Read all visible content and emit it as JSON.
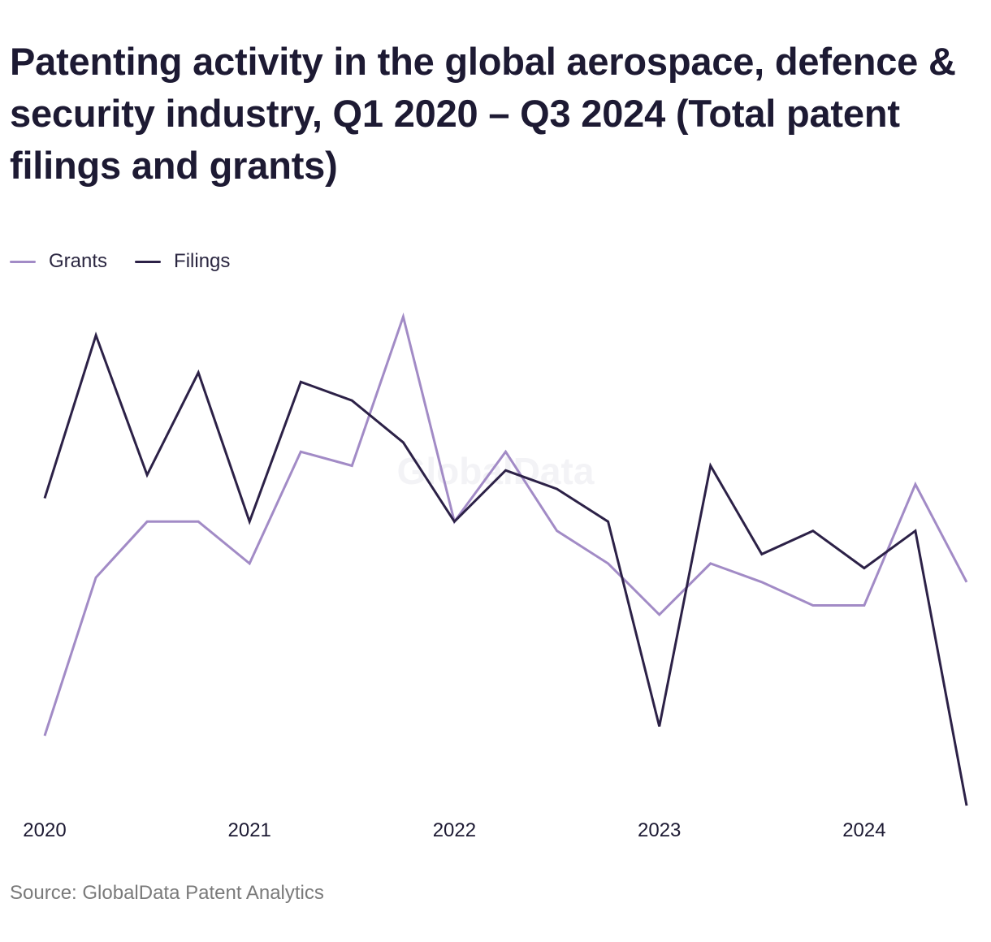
{
  "title": "Patenting activity in the global aerospace, defence & security industry, Q1 2020 – Q3 2024 (Total patent filings and grants)",
  "source": "Source: GlobalData Patent Analytics",
  "watermark": "GlobalData",
  "colors": {
    "grants": "#a28bc6",
    "filings": "#2c2147",
    "text": "#1d1a33",
    "watermark": "#f3f3f6"
  },
  "chart_data": {
    "type": "line",
    "title": "Patenting activity in the global aerospace, defence & security industry, Q1 2020 – Q3 2024 (Total patent filings and grants)",
    "x": [
      "Q1 2020",
      "Q2 2020",
      "Q3 2020",
      "Q4 2020",
      "Q1 2021",
      "Q2 2021",
      "Q3 2021",
      "Q4 2021",
      "Q1 2022",
      "Q2 2022",
      "Q3 2022",
      "Q4 2022",
      "Q1 2023",
      "Q2 2023",
      "Q3 2023",
      "Q4 2023",
      "Q1 2024",
      "Q2 2024",
      "Q3 2024"
    ],
    "x_tick_labels": [
      "2020",
      "2021",
      "2022",
      "2023",
      "2024"
    ],
    "x_tick_positions": [
      "Q1 2020",
      "Q1 2021",
      "Q1 2022",
      "Q1 2023",
      "Q1 2024"
    ],
    "legend_position": "top-left",
    "y_axis_visible": false,
    "grid": false,
    "ylim": [
      0,
      100
    ],
    "series": [
      {
        "name": "Grants",
        "color": "#a28bc6",
        "values": [
          15,
          49,
          61,
          61,
          52,
          76,
          73,
          105,
          61,
          76,
          59,
          52,
          41,
          52,
          48,
          43,
          43,
          69,
          48
        ]
      },
      {
        "name": "Filings",
        "color": "#2c2147",
        "values": [
          66,
          101,
          71,
          93,
          61,
          91,
          87,
          78,
          61,
          72,
          68,
          61,
          17,
          73,
          54,
          59,
          51,
          59,
          0
        ]
      }
    ]
  }
}
